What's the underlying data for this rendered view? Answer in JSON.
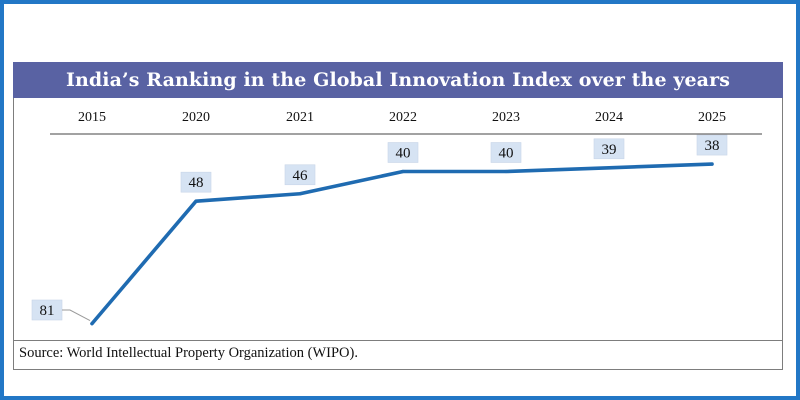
{
  "source": "Source: World Intellectual Property Organization (WIPO).",
  "colors": {
    "frame": "#2277c6",
    "title_bg": "#5962a3",
    "line": "#1f6bb1",
    "label_bg": "#d6e3f3"
  },
  "chart_data": {
    "type": "line",
    "title": "India’s Ranking in the Global Innovation Index over the years",
    "xlabel": "",
    "ylabel": "",
    "categories": [
      "2015",
      "2020",
      "2021",
      "2022",
      "2023",
      "2024",
      "2025"
    ],
    "values": [
      81,
      48,
      46,
      40,
      40,
      39,
      38
    ],
    "y_axis": "hidden, inverted (rank 1 at top)",
    "x_axis_position": "top",
    "grid": false,
    "legend": "none",
    "data_labels": true
  }
}
